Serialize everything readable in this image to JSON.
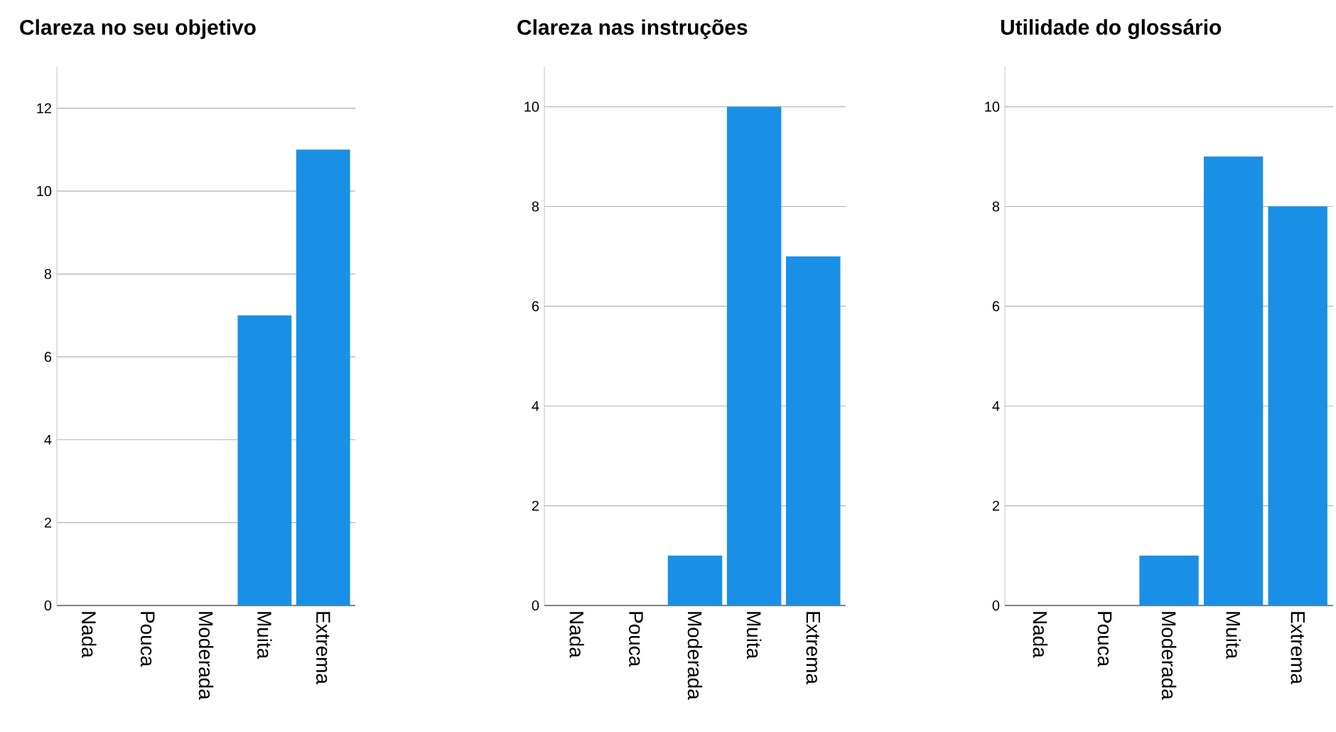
{
  "chart_data": [
    {
      "type": "bar",
      "title": "Clareza no seu objetivo",
      "categories": [
        "Nada",
        "Pouca",
        "Moderada",
        "Muita",
        "Extrema"
      ],
      "values": [
        0,
        0,
        0,
        7,
        11
      ],
      "color": "#1a8fe6",
      "ylim": [
        0,
        13
      ],
      "yticks": [
        0,
        2,
        4,
        6,
        8,
        10,
        12
      ],
      "grid": "y"
    },
    {
      "type": "bar",
      "title": "Clareza nas instruções",
      "categories": [
        "Nada",
        "Pouca",
        "Moderada",
        "Muita",
        "Extrema"
      ],
      "values": [
        0,
        0,
        1,
        10,
        7
      ],
      "color": "#1a8fe6",
      "ylim": [
        0,
        10.8
      ],
      "yticks": [
        0,
        2,
        4,
        6,
        8,
        10
      ],
      "grid": "y"
    },
    {
      "type": "bar",
      "title": "Utilidade do glossário",
      "categories": [
        "Nada",
        "Pouca",
        "Moderada",
        "Muita",
        "Extrema"
      ],
      "values": [
        0,
        0,
        1,
        9,
        8
      ],
      "color": "#1a8fe6",
      "ylim": [
        0,
        10.8
      ],
      "yticks": [
        0,
        2,
        4,
        6,
        8,
        10
      ],
      "grid": "y"
    }
  ]
}
